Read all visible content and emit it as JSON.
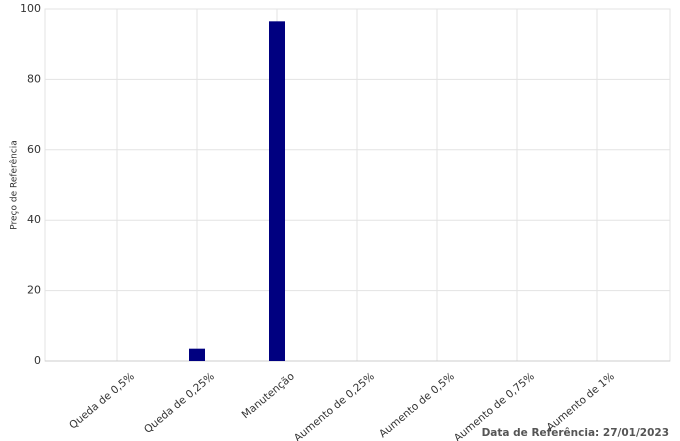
{
  "chart_data": {
    "type": "bar",
    "y_label": "Preço de Referência",
    "footer": "Data de Referência: 27/01/2023",
    "categories": [
      "Queda de 0,5%",
      "Queda de 0,25%",
      "Manutenção",
      "Aumento de 0,25%",
      "Aumento de 0,5%",
      "Aumento de 0,75%",
      "Aumento de 1%"
    ],
    "values": [
      0,
      3.5,
      96.5,
      0,
      0,
      0,
      0
    ],
    "color": "#000080",
    "ylim": [
      0,
      100
    ],
    "yticks": [
      0,
      20,
      40,
      60,
      80,
      100
    ],
    "grid": true
  }
}
